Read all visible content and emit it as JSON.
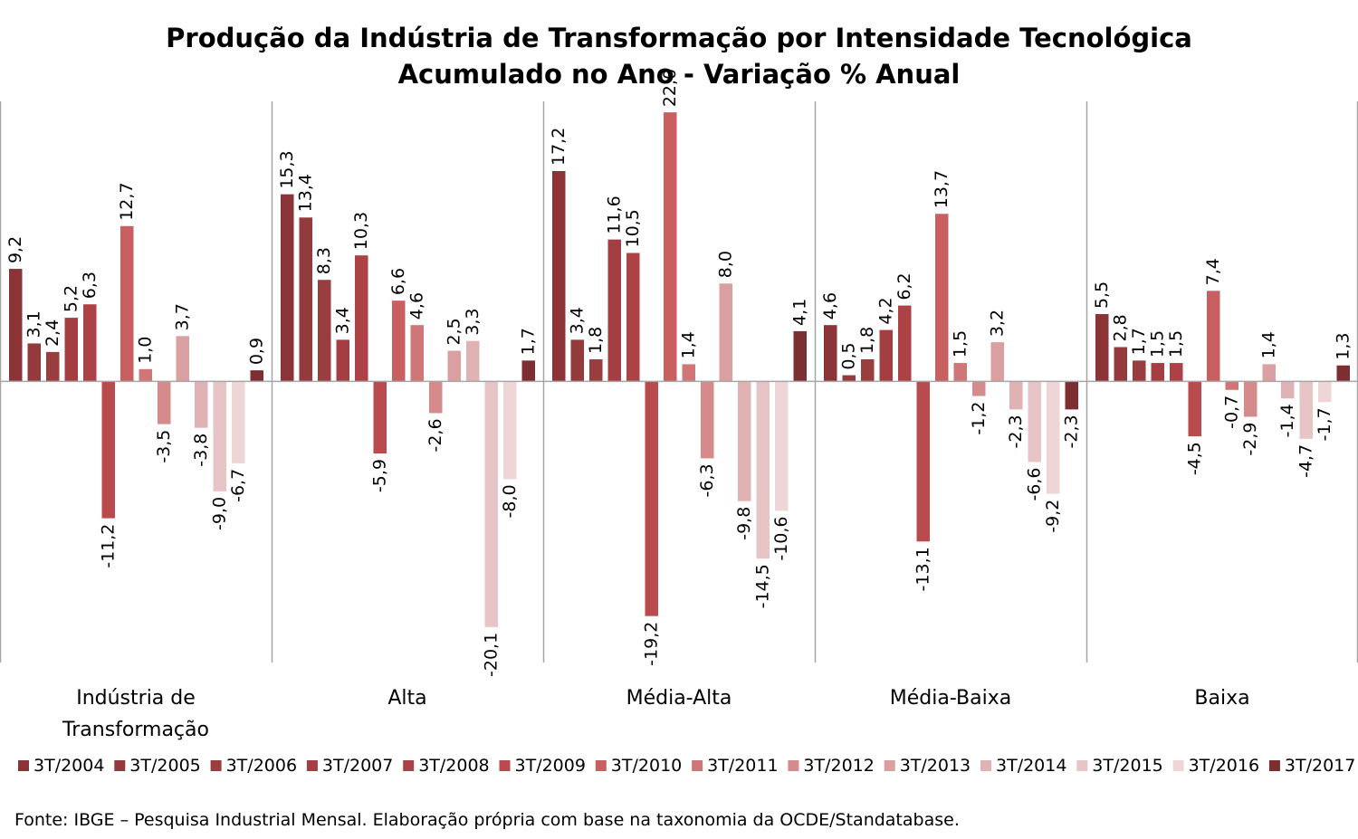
{
  "chart_data": {
    "type": "bar",
    "title": "Produção da Indústria de Transformação por Intensidade Tecnológica",
    "subtitle": "Acumulado no Ano - Variação % Anual",
    "categories": [
      "Indústria de Transformação",
      "Alta",
      "Média-Alta",
      "Média-Baixa",
      "Baixa"
    ],
    "ylim": [
      -23,
      22.9
    ],
    "grid": false,
    "legend_position": "bottom",
    "series": [
      {
        "name": "3T/2004",
        "color": "#8b3337",
        "values": [
          9.2,
          15.3,
          17.2,
          4.6,
          5.5
        ]
      },
      {
        "name": "3T/2005",
        "color": "#923a3c",
        "values": [
          3.1,
          13.4,
          3.4,
          0.5,
          2.8
        ]
      },
      {
        "name": "3T/2006",
        "color": "#9a3d3f",
        "values": [
          2.4,
          8.3,
          1.8,
          1.8,
          1.7
        ]
      },
      {
        "name": "3T/2007",
        "color": "#a53e42",
        "values": [
          5.2,
          3.4,
          11.6,
          4.2,
          1.5
        ]
      },
      {
        "name": "3T/2008",
        "color": "#ad4246",
        "values": [
          6.3,
          10.3,
          10.5,
          6.2,
          1.5
        ]
      },
      {
        "name": "3T/2009",
        "color": "#b94a4d",
        "values": [
          -11.2,
          -5.9,
          -19.2,
          -13.1,
          -4.5
        ]
      },
      {
        "name": "3T/2010",
        "color": "#c85f60",
        "values": [
          12.7,
          6.6,
          22.0,
          13.7,
          7.4
        ]
      },
      {
        "name": "3T/2011",
        "color": "#cf7778",
        "values": [
          1.0,
          4.6,
          1.4,
          1.5,
          -0.7
        ]
      },
      {
        "name": "3T/2012",
        "color": "#d58b8c",
        "values": [
          -3.5,
          -2.6,
          -6.3,
          -1.2,
          -2.9
        ]
      },
      {
        "name": "3T/2013",
        "color": "#daa0a1",
        "values": [
          3.7,
          2.5,
          8.0,
          3.2,
          1.4
        ]
      },
      {
        "name": "3T/2014",
        "color": "#e0b2b3",
        "values": [
          -3.8,
          3.3,
          -9.8,
          -2.3,
          -1.4
        ]
      },
      {
        "name": "3T/2015",
        "color": "#e7c4c5",
        "values": [
          -9.0,
          -20.1,
          -14.5,
          -6.6,
          -4.7
        ]
      },
      {
        "name": "3T/2016",
        "color": "#eed5d6",
        "values": [
          -6.7,
          -8.0,
          -10.6,
          -9.2,
          -1.7
        ]
      },
      {
        "name": "3T/2017",
        "color": "#7d2e31",
        "values": [
          0.9,
          1.7,
          4.1,
          -2.3,
          1.3
        ]
      }
    ],
    "value_labels": [
      [
        "9,2",
        "15,3",
        "17,2",
        "4,6",
        "5,5"
      ],
      [
        "3,1",
        "13,4",
        "3,4",
        "0,5",
        "2,8"
      ],
      [
        "2,4",
        "8,3",
        "1,8",
        "1,8",
        "1,7"
      ],
      [
        "5,2",
        "3,4",
        "11,6",
        "4,2",
        "1,5"
      ],
      [
        "6,3",
        "10,3",
        "10,5",
        "6,2",
        "1,5"
      ],
      [
        "-11,2",
        "-5,9",
        "-19,2",
        "-13,1",
        "-4,5"
      ],
      [
        "12,7",
        "6,6",
        "22,0",
        "13,7",
        "7,4"
      ],
      [
        "1,0",
        "4,6",
        "1,4",
        "1,5",
        "-0,7"
      ],
      [
        "-3,5",
        "-2,6",
        "-6,3",
        "-1,2",
        "-2,9"
      ],
      [
        "3,7",
        "2,5",
        "8,0",
        "3,2",
        "1,4"
      ],
      [
        "-3,8",
        "3,3",
        "-9,8",
        "-2,3",
        "-1,4"
      ],
      [
        "-9,0",
        "-20,1",
        "-14,5",
        "-6,6",
        "-4,7"
      ],
      [
        "-6,7",
        "-8,0",
        "-10,6",
        "-9,2",
        "-1,7"
      ],
      [
        "0,9",
        "1,7",
        "4,1",
        "-2,3",
        "1,3"
      ]
    ],
    "category_label_lines": [
      [
        "Indústria de",
        "Transformação"
      ],
      [
        "Alta"
      ],
      [
        "Média-Alta"
      ],
      [
        "Média-Baixa"
      ],
      [
        "Baixa"
      ]
    ]
  },
  "footer": {
    "source": "Fonte: IBGE – Pesquisa Industrial Mensal. Elaboração própria com base na taxonomia da OCDE/Standatabase."
  }
}
